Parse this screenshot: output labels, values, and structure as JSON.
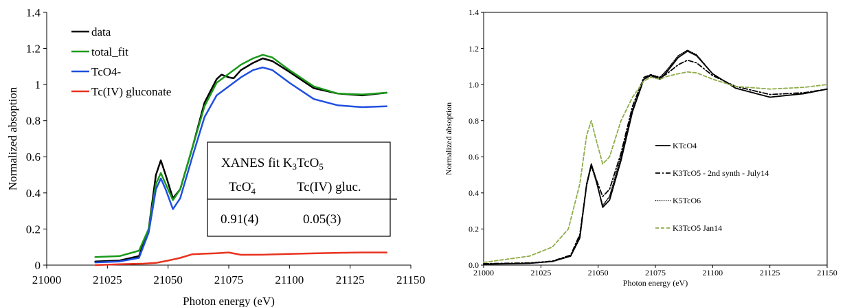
{
  "chart_data": [
    {
      "type": "line",
      "xlabel": "Photon energy (eV)",
      "ylabel": "Normalized absoption",
      "xlim": [
        21000,
        21150
      ],
      "ylim": [
        0,
        1.4
      ],
      "x_ticks": [
        21000,
        21025,
        21050,
        21075,
        21100,
        21125,
        21150
      ],
      "y_ticks": [
        0,
        0.2,
        0.4,
        0.6,
        0.8,
        1,
        1.2,
        1.4
      ],
      "y_tick_labels": [
        "0",
        "0.2",
        "0.4",
        "0.6",
        "0.8",
        "1",
        "1.2",
        "1.4"
      ],
      "grid": false,
      "legend_position": "top-left",
      "series": [
        {
          "name": "data",
          "color": "#000000",
          "points": [
            [
              21020,
              0.02
            ],
            [
              21030,
              0.025
            ],
            [
              21038,
              0.05
            ],
            [
              21042,
              0.2
            ],
            [
              21045,
              0.5
            ],
            [
              21047,
              0.58
            ],
            [
              21049,
              0.5
            ],
            [
              21052,
              0.37
            ],
            [
              21055,
              0.42
            ],
            [
              21060,
              0.65
            ],
            [
              21065,
              0.9
            ],
            [
              21070,
              1.03
            ],
            [
              21072,
              1.055
            ],
            [
              21075,
              1.04
            ],
            [
              21077,
              1.035
            ],
            [
              21080,
              1.08
            ],
            [
              21085,
              1.12
            ],
            [
              21089,
              1.145
            ],
            [
              21093,
              1.13
            ],
            [
              21100,
              1.07
            ],
            [
              21110,
              0.98
            ],
            [
              21120,
              0.95
            ],
            [
              21130,
              0.94
            ],
            [
              21140,
              0.955
            ]
          ]
        },
        {
          "name": "total_fit",
          "color": "#1a9a1a",
          "points": [
            [
              21020,
              0.045
            ],
            [
              21030,
              0.05
            ],
            [
              21038,
              0.08
            ],
            [
              21042,
              0.2
            ],
            [
              21045,
              0.45
            ],
            [
              21047,
              0.51
            ],
            [
              21049,
              0.45
            ],
            [
              21052,
              0.36
            ],
            [
              21055,
              0.42
            ],
            [
              21060,
              0.65
            ],
            [
              21065,
              0.88
            ],
            [
              21070,
              1.01
            ],
            [
              21073,
              1.04
            ],
            [
              21075,
              1.06
            ],
            [
              21080,
              1.11
            ],
            [
              21085,
              1.145
            ],
            [
              21089,
              1.165
            ],
            [
              21093,
              1.15
            ],
            [
              21100,
              1.08
            ],
            [
              21110,
              0.99
            ],
            [
              21120,
              0.95
            ],
            [
              21130,
              0.945
            ],
            [
              21140,
              0.955
            ]
          ]
        },
        {
          "name": "TcO4-",
          "color": "#1f4fe0",
          "points": [
            [
              21020,
              0.015
            ],
            [
              21030,
              0.02
            ],
            [
              21038,
              0.04
            ],
            [
              21042,
              0.18
            ],
            [
              21045,
              0.42
            ],
            [
              21047,
              0.48
            ],
            [
              21049,
              0.42
            ],
            [
              21052,
              0.31
            ],
            [
              21055,
              0.37
            ],
            [
              21060,
              0.6
            ],
            [
              21065,
              0.82
            ],
            [
              21070,
              0.94
            ],
            [
              21075,
              0.99
            ],
            [
              21080,
              1.04
            ],
            [
              21085,
              1.08
            ],
            [
              21089,
              1.095
            ],
            [
              21093,
              1.08
            ],
            [
              21100,
              1.01
            ],
            [
              21110,
              0.92
            ],
            [
              21120,
              0.885
            ],
            [
              21130,
              0.875
            ],
            [
              21140,
              0.88
            ]
          ]
        },
        {
          "name": "Tc(IV) gluconate",
          "color": "#e8321e",
          "points": [
            [
              21020,
              0.0
            ],
            [
              21030,
              0.005
            ],
            [
              21040,
              0.008
            ],
            [
              21045,
              0.012
            ],
            [
              21050,
              0.025
            ],
            [
              21055,
              0.04
            ],
            [
              21060,
              0.06
            ],
            [
              21065,
              0.063
            ],
            [
              21070,
              0.066
            ],
            [
              21075,
              0.07
            ],
            [
              21080,
              0.057
            ],
            [
              21090,
              0.058
            ],
            [
              21100,
              0.062
            ],
            [
              21110,
              0.065
            ],
            [
              21120,
              0.068
            ],
            [
              21130,
              0.07
            ],
            [
              21140,
              0.07
            ]
          ]
        }
      ],
      "annotation": {
        "title_text": "XANES fit K",
        "title_sub1": "3",
        "title_mid": "TcO",
        "title_sub2": "5",
        "col1_header": "TcO",
        "col1_sub": "4",
        "col1_sup": "-",
        "col2_header": "Tc(IV) gluc.",
        "col1_value": "0.91(4)",
        "col2_value": "0.05(3)"
      }
    },
    {
      "type": "line",
      "xlabel": "Photon energy (eV)",
      "ylabel": "Normalized absoption",
      "xlim": [
        21000,
        21150
      ],
      "ylim": [
        0,
        1.4
      ],
      "x_ticks": [
        21000,
        21025,
        21050,
        21075,
        21100,
        21125,
        21150
      ],
      "y_ticks": [
        0,
        0.2,
        0.4,
        0.6,
        0.8,
        1,
        1.2,
        1.4
      ],
      "y_tick_labels": [
        "0.0",
        "0.2",
        "0.4",
        "0.6",
        "0.8",
        "1.0",
        "1.2",
        "1.4"
      ],
      "grid": false,
      "legend_position": "center-right",
      "series": [
        {
          "name": "KTcO4",
          "color": "#000000",
          "dash": "solid",
          "points": [
            [
              21000,
              0.005
            ],
            [
              21020,
              0.01
            ],
            [
              21030,
              0.02
            ],
            [
              21038,
              0.05
            ],
            [
              21042,
              0.15
            ],
            [
              21045,
              0.45
            ],
            [
              21047,
              0.56
            ],
            [
              21049,
              0.48
            ],
            [
              21052,
              0.32
            ],
            [
              21055,
              0.36
            ],
            [
              21060,
              0.58
            ],
            [
              21065,
              0.85
            ],
            [
              21070,
              1.03
            ],
            [
              21073,
              1.05
            ],
            [
              21077,
              1.03
            ],
            [
              21080,
              1.07
            ],
            [
              21085,
              1.15
            ],
            [
              21089,
              1.185
            ],
            [
              21093,
              1.16
            ],
            [
              21100,
              1.06
            ],
            [
              21110,
              0.98
            ],
            [
              21125,
              0.93
            ],
            [
              21140,
              0.95
            ],
            [
              21150,
              0.975
            ]
          ]
        },
        {
          "name": "K3TcO5 - 2nd synth - July14",
          "color": "#000000",
          "dash": "dashdot",
          "points": [
            [
              21000,
              0.008
            ],
            [
              21020,
              0.012
            ],
            [
              21030,
              0.022
            ],
            [
              21038,
              0.055
            ],
            [
              21042,
              0.17
            ],
            [
              21045,
              0.45
            ],
            [
              21047,
              0.55
            ],
            [
              21049,
              0.48
            ],
            [
              21052,
              0.38
            ],
            [
              21055,
              0.42
            ],
            [
              21060,
              0.62
            ],
            [
              21065,
              0.88
            ],
            [
              21070,
              1.04
            ],
            [
              21073,
              1.055
            ],
            [
              21077,
              1.035
            ],
            [
              21080,
              1.06
            ],
            [
              21085,
              1.11
            ],
            [
              21089,
              1.135
            ],
            [
              21093,
              1.12
            ],
            [
              21100,
              1.05
            ],
            [
              21110,
              0.99
            ],
            [
              21125,
              0.945
            ],
            [
              21140,
              0.955
            ],
            [
              21150,
              0.975
            ]
          ]
        },
        {
          "name": "K5TcO6",
          "color": "#000000",
          "dash": "dotted",
          "points": [
            [
              21000,
              0.006
            ],
            [
              21020,
              0.01
            ],
            [
              21030,
              0.02
            ],
            [
              21038,
              0.05
            ],
            [
              21042,
              0.16
            ],
            [
              21045,
              0.44
            ],
            [
              21047,
              0.55
            ],
            [
              21049,
              0.47
            ],
            [
              21052,
              0.33
            ],
            [
              21055,
              0.38
            ],
            [
              21060,
              0.6
            ],
            [
              21065,
              0.86
            ],
            [
              21070,
              1.03
            ],
            [
              21073,
              1.055
            ],
            [
              21077,
              1.04
            ],
            [
              21080,
              1.08
            ],
            [
              21085,
              1.16
            ],
            [
              21089,
              1.19
            ],
            [
              21093,
              1.165
            ],
            [
              21100,
              1.06
            ],
            [
              21110,
              0.98
            ],
            [
              21125,
              0.93
            ],
            [
              21140,
              0.95
            ],
            [
              21150,
              0.975
            ]
          ]
        },
        {
          "name": "K3TcO5 Jan14",
          "color": "#8fac4a",
          "dash": "dashed",
          "points": [
            [
              21000,
              0.015
            ],
            [
              21020,
              0.05
            ],
            [
              21030,
              0.1
            ],
            [
              21037,
              0.2
            ],
            [
              21042,
              0.45
            ],
            [
              21045,
              0.72
            ],
            [
              21047,
              0.8
            ],
            [
              21049,
              0.7
            ],
            [
              21052,
              0.56
            ],
            [
              21055,
              0.6
            ],
            [
              21060,
              0.8
            ],
            [
              21065,
              0.93
            ],
            [
              21070,
              1.02
            ],
            [
              21073,
              1.04
            ],
            [
              21077,
              1.03
            ],
            [
              21080,
              1.045
            ],
            [
              21085,
              1.06
            ],
            [
              21089,
              1.07
            ],
            [
              21093,
              1.065
            ],
            [
              21100,
              1.03
            ],
            [
              21110,
              0.99
            ],
            [
              21125,
              0.975
            ],
            [
              21140,
              0.985
            ],
            [
              21150,
              1.0
            ]
          ]
        }
      ]
    }
  ]
}
